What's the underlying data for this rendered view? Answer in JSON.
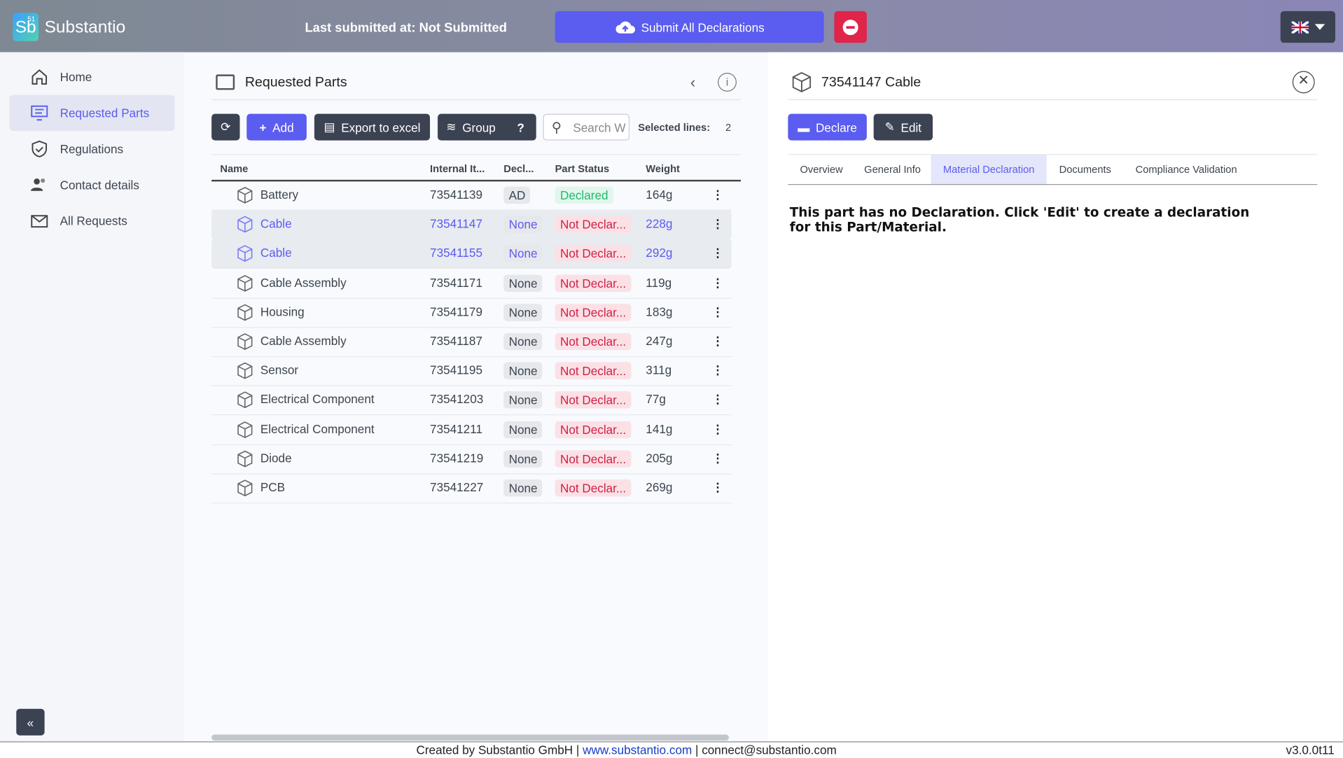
{
  "header": {
    "logo": "Sb",
    "logo_sup": "51",
    "brand": "Substantio",
    "last_submitted_label": "Last submitted at:",
    "last_submitted_value": "Not Submitted",
    "submit_button": "Submit All Declarations"
  },
  "sidebar": {
    "items": [
      "Home",
      "Requested Parts",
      "Regulations",
      "Contact details",
      "All Requests"
    ],
    "active": 1
  },
  "panel": {
    "title": "Requested Parts",
    "toolbar": {
      "add": "Add",
      "export": "Export to excel",
      "group": "Group",
      "help": "?",
      "search": "Search W",
      "selected_label": "Selected lines:",
      "selected_count": 2
    }
  },
  "table": {
    "columns": [
      "Name",
      "Internal It...",
      "Decl...",
      "Part Status",
      "Weight"
    ],
    "rows": [
      {
        "name": "Battery",
        "internal": "73541139",
        "decl": "AD",
        "status": "Declared",
        "weight": "164g",
        "selected": false
      },
      {
        "name": "Cable",
        "internal": "73541147",
        "decl": "None",
        "status": "Not Declar...",
        "weight": "228g",
        "selected": true
      },
      {
        "name": "Cable",
        "internal": "73541155",
        "decl": "None",
        "status": "Not Declar...",
        "weight": "292g",
        "selected": true
      },
      {
        "name": "Cable Assembly",
        "internal": "73541171",
        "decl": "None",
        "status": "Not Declar...",
        "weight": "119g",
        "selected": false
      },
      {
        "name": "Housing",
        "internal": "73541179",
        "decl": "None",
        "status": "Not Declar...",
        "weight": "183g",
        "selected": false
      },
      {
        "name": "Cable Assembly",
        "internal": "73541187",
        "decl": "None",
        "status": "Not Declar...",
        "weight": "247g",
        "selected": false
      },
      {
        "name": "Sensor",
        "internal": "73541195",
        "decl": "None",
        "status": "Not Declar...",
        "weight": "311g",
        "selected": false
      },
      {
        "name": "Electrical Component",
        "internal": "73541203",
        "decl": "None",
        "status": "Not Declar...",
        "weight": "77g",
        "selected": false
      },
      {
        "name": "Electrical Component",
        "internal": "73541211",
        "decl": "None",
        "status": "Not Declar...",
        "weight": "141g",
        "selected": false
      },
      {
        "name": "Diode",
        "internal": "73541219",
        "decl": "None",
        "status": "Not Declar...",
        "weight": "205g",
        "selected": false
      },
      {
        "name": "PCB",
        "internal": "73541227",
        "decl": "None",
        "status": "Not Declar...",
        "weight": "269g",
        "selected": false
      }
    ]
  },
  "detail": {
    "title": "73541147 Cable",
    "declare": "Declare",
    "edit": "Edit",
    "tabs": [
      "Overview",
      "General Info",
      "Material Declaration",
      "Documents",
      "Compliance Validation"
    ],
    "active_tab": 2,
    "message": "This part has no Declaration. Click 'Edit' to create a declaration for this Part/Material."
  },
  "footer": {
    "created": "Created by Substantio GmbH",
    "separator": "|",
    "website": "www.substantio.com",
    "email": "connect@substantio.com",
    "version": "v3.0.0t11"
  }
}
